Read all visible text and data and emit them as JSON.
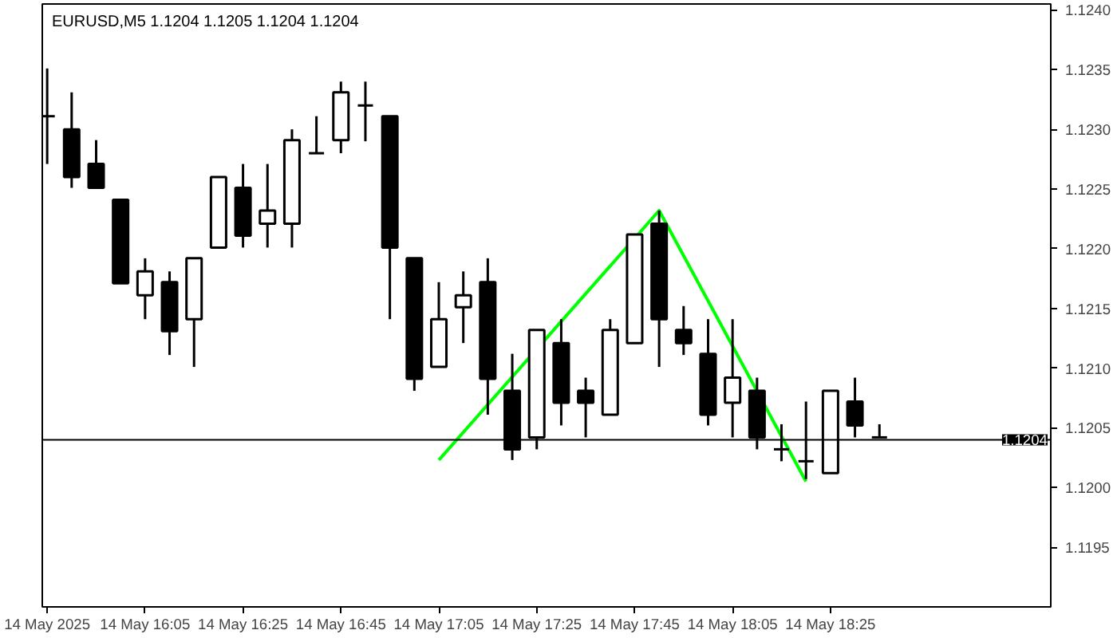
{
  "chart_data": {
    "type": "candlestick",
    "title": "EURUSD,M5  1.1204 1.1205 1.1204 1.1204",
    "x": [
      "2025-05-14T15:45",
      "2025-05-14T15:50",
      "2025-05-14T15:55",
      "2025-05-14T16:00",
      "2025-05-14T16:05",
      "2025-05-14T16:10",
      "2025-05-14T16:15",
      "2025-05-14T16:20",
      "2025-05-14T16:25",
      "2025-05-14T16:30",
      "2025-05-14T16:35",
      "2025-05-14T16:40",
      "2025-05-14T16:45",
      "2025-05-14T16:50",
      "2025-05-14T16:55",
      "2025-05-14T17:00",
      "2025-05-14T17:05",
      "2025-05-14T17:10",
      "2025-05-14T17:15",
      "2025-05-14T17:20",
      "2025-05-14T17:25",
      "2025-05-14T17:30",
      "2025-05-14T17:35",
      "2025-05-14T17:40",
      "2025-05-14T17:45",
      "2025-05-14T17:50",
      "2025-05-14T17:55",
      "2025-05-14T18:00",
      "2025-05-14T18:05",
      "2025-05-14T18:10",
      "2025-05-14T18:15",
      "2025-05-14T18:20",
      "2025-05-14T18:25",
      "2025-05-14T18:30",
      "2025-05-14T18:35"
    ],
    "ohlc": [
      [
        1.12311,
        1.12351,
        1.12271,
        1.12311
      ],
      [
        1.123,
        1.12331,
        1.12251,
        1.1226
      ],
      [
        1.12271,
        1.12291,
        1.12251,
        1.12251
      ],
      [
        1.12241,
        1.12241,
        1.12171,
        1.12171
      ],
      [
        1.12161,
        1.12192,
        1.12141,
        1.12181
      ],
      [
        1.12172,
        1.12181,
        1.12111,
        1.12131
      ],
      [
        1.12141,
        1.12192,
        1.12101,
        1.12192
      ],
      [
        1.12201,
        1.1226,
        1.12201,
        1.1226
      ],
      [
        1.12251,
        1.12271,
        1.12201,
        1.12211
      ],
      [
        1.12221,
        1.12271,
        1.12201,
        1.12232
      ],
      [
        1.12221,
        1.123,
        1.12201,
        1.12291
      ],
      [
        1.1228,
        1.12311,
        1.1228,
        1.1228
      ],
      [
        1.12291,
        1.1234,
        1.1228,
        1.12331
      ],
      [
        1.1232,
        1.1234,
        1.1229,
        1.1232
      ],
      [
        1.12311,
        1.12311,
        1.12141,
        1.12201
      ],
      [
        1.12192,
        1.12192,
        1.12081,
        1.12091
      ],
      [
        1.12101,
        1.12172,
        1.12101,
        1.12141
      ],
      [
        1.12151,
        1.12181,
        1.12121,
        1.12161
      ],
      [
        1.12172,
        1.12192,
        1.12061,
        1.12091
      ],
      [
        1.12081,
        1.12112,
        1.12023,
        1.12032
      ],
      [
        1.12042,
        1.12132,
        1.12032,
        1.12132
      ],
      [
        1.12121,
        1.12141,
        1.12052,
        1.12071
      ],
      [
        1.12081,
        1.12092,
        1.12042,
        1.12071
      ],
      [
        1.12061,
        1.12141,
        1.12061,
        1.12132
      ],
      [
        1.12121,
        1.12212,
        1.12121,
        1.12212
      ],
      [
        1.12221,
        1.12232,
        1.12101,
        1.12141
      ],
      [
        1.12132,
        1.12152,
        1.12111,
        1.12121
      ],
      [
        1.12112,
        1.12141,
        1.12052,
        1.12061
      ],
      [
        1.12071,
        1.12141,
        1.12042,
        1.12092
      ],
      [
        1.12081,
        1.12092,
        1.12032,
        1.12042
      ],
      [
        1.12032,
        1.12053,
        1.12022,
        1.12032
      ],
      [
        1.12022,
        1.12072,
        1.12007,
        1.12022
      ],
      [
        1.12012,
        1.12081,
        1.12012,
        1.12081
      ],
      [
        1.12072,
        1.12092,
        1.12042,
        1.12052
      ],
      [
        1.12042,
        1.12053,
        1.12042,
        1.12042
      ]
    ],
    "series": [
      {
        "type": "line",
        "color": "#00ff00",
        "x": [
          "2025-05-14T17:05",
          "2025-05-14T17:50",
          "2025-05-14T18:20"
        ],
        "values": [
          1.12023,
          1.12232,
          1.12005
        ]
      }
    ],
    "xlim": [
      "2025-05-14T15:44",
      "2025-05-14T19:10"
    ],
    "xticks": [
      {
        "value": "2025-05-14T15:45",
        "label": "14 May 2025"
      },
      {
        "value": "2025-05-14T16:05",
        "label": "14 May 16:05"
      },
      {
        "value": "2025-05-14T16:25",
        "label": "14 May 16:25"
      },
      {
        "value": "2025-05-14T16:45",
        "label": "14 May 16:45"
      },
      {
        "value": "2025-05-14T17:05",
        "label": "14 May 17:05"
      },
      {
        "value": "2025-05-14T17:25",
        "label": "14 May 17:25"
      },
      {
        "value": "2025-05-14T17:45",
        "label": "14 May 17:45"
      },
      {
        "value": "2025-05-14T18:05",
        "label": "14 May 18:05"
      },
      {
        "value": "2025-05-14T18:25",
        "label": "14 May 18:25"
      }
    ],
    "ylim": [
      1.119,
      1.12405
    ],
    "yticks": [
      {
        "value": 1.1195,
        "label": "1.1195"
      },
      {
        "value": 1.12,
        "label": "1.1200"
      },
      {
        "value": 1.1205,
        "label": "1.1205"
      },
      {
        "value": 1.121,
        "label": "1.1210"
      },
      {
        "value": 1.1215,
        "label": "1.1215"
      },
      {
        "value": 1.122,
        "label": "1.1220"
      },
      {
        "value": 1.1225,
        "label": "1.1225"
      },
      {
        "value": 1.123,
        "label": "1.1230"
      },
      {
        "value": 1.1235,
        "label": "1.1235"
      },
      {
        "value": 1.124,
        "label": "1.1240"
      }
    ],
    "ref_lines": [
      {
        "axis": "y",
        "value": 1.1204,
        "label": "1.1204",
        "color": "#000000"
      }
    ],
    "grid": false
  }
}
